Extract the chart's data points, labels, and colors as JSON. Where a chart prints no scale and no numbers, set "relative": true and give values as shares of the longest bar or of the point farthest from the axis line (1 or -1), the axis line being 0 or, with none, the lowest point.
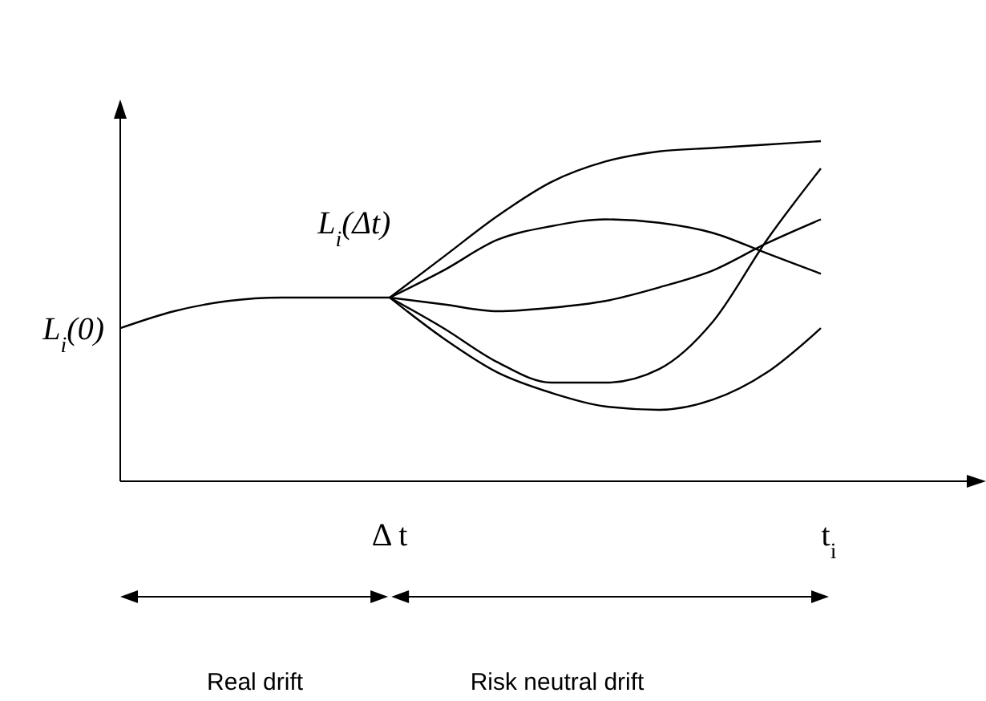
{
  "chart_data": {
    "type": "line",
    "relative": true,
    "categories": [
      null,
      null,
      null,
      null,
      null,
      "Δ t",
      null,
      null,
      null,
      null,
      null,
      null,
      null,
      "t$_{i}$"
    ],
    "series": [
      {
        "color": "#000000",
        "values": [
          0.45,
          0.5,
          0.53,
          0.54,
          0.54,
          0.54,
          null,
          null,
          null,
          null,
          null,
          null,
          null,
          null
        ]
      },
      {
        "color": "#000000",
        "values": [
          null,
          null,
          null,
          null,
          null,
          0.54,
          0.66,
          0.78,
          0.88,
          0.94,
          0.97,
          0.98,
          0.99,
          1.0
        ]
      },
      {
        "color": "#000000",
        "values": [
          null,
          null,
          null,
          null,
          null,
          0.54,
          0.62,
          0.71,
          0.75,
          0.77,
          0.76,
          0.73,
          0.67,
          0.61
        ]
      },
      {
        "color": "#000000",
        "values": [
          null,
          null,
          null,
          null,
          null,
          0.54,
          0.52,
          0.5,
          0.51,
          0.53,
          0.57,
          0.62,
          0.7,
          0.77
        ]
      },
      {
        "color": "#000000",
        "values": [
          null,
          null,
          null,
          null,
          null,
          0.54,
          0.45,
          0.35,
          0.29,
          0.29,
          0.33,
          0.47,
          0.71,
          0.92
        ]
      },
      {
        "color": "#000000",
        "values": [
          null,
          null,
          null,
          null,
          null,
          0.54,
          0.42,
          0.32,
          0.26,
          0.22,
          0.21,
          0.24,
          0.32,
          0.45
        ]
      }
    ],
    "annotations": [
      {
        "text": "L$_{i}$(0)"
      },
      {
        "text": "L$_{i}$(Δt)",
        "x": "Δ t",
        "y": 0.54
      },
      "Real drift",
      "Risk neutral drift"
    ]
  }
}
